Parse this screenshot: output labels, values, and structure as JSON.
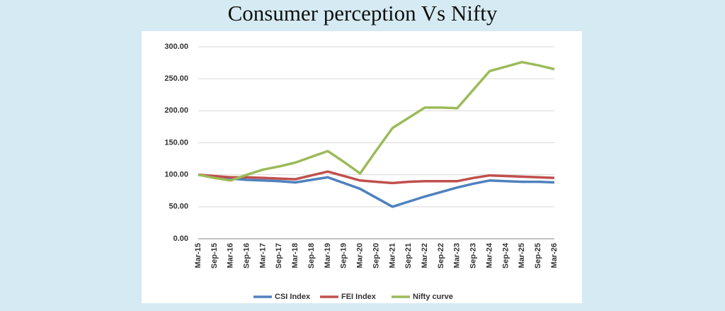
{
  "chart_data": {
    "type": "line",
    "title": "Consumer perception Vs Nifty",
    "categories": [
      "Mar-15",
      "Sep-15",
      "Mar-16",
      "Sep-16",
      "Mar-17",
      "Sep-17",
      "Mar-18",
      "Sep-18",
      "Mar-19",
      "Sep-19",
      "Mar-20",
      "Sep-20",
      "Mar-21",
      "Sep-21",
      "Mar-22",
      "Sep-22",
      "Mar-23",
      "Sep-23",
      "Mar-24",
      "Sep-24",
      "Mar-25",
      "Sep-25",
      "Mar-26"
    ],
    "series": [
      {
        "name": "CSI Index",
        "color": "#4f81bd",
        "values": [
          100,
          97,
          94,
          92,
          91,
          90,
          88,
          92,
          96,
          87,
          78,
          64,
          50,
          58,
          66,
          73,
          80,
          86,
          91,
          90,
          89,
          89,
          88
        ]
      },
      {
        "name": "FEI Index",
        "color": "#c0504d",
        "values": [
          100,
          98,
          96,
          96,
          95,
          94,
          93,
          99,
          105,
          98,
          91,
          89,
          87,
          89,
          90,
          90,
          90,
          95,
          99,
          98,
          97,
          96,
          95
        ]
      },
      {
        "name": "Nifty curve",
        "color": "#9bbb59",
        "values": [
          100,
          95,
          91,
          100,
          108,
          113,
          119,
          128,
          137,
          120,
          102,
          138,
          173,
          189,
          205,
          205,
          204,
          233,
          262,
          269,
          276,
          271,
          265
        ]
      }
    ],
    "ylim": [
      0,
      300
    ],
    "yticks": [
      {
        "value": 0,
        "label": "0.00"
      },
      {
        "value": 50,
        "label": "50.00"
      },
      {
        "value": 100,
        "label": "100.00"
      },
      {
        "value": 150,
        "label": "150.00"
      },
      {
        "value": 200,
        "label": "200.00"
      },
      {
        "value": 250,
        "label": "250.00"
      },
      {
        "value": 300,
        "label": "300.00"
      }
    ],
    "grid": true,
    "legend": "bottom"
  }
}
